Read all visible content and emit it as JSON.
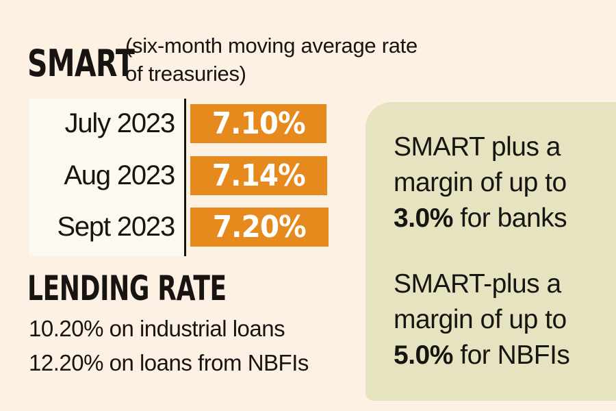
{
  "colors": {
    "background": "#fcf1e2",
    "bar_orange": "#e78a1e",
    "panel_bg": "#e6e3c0",
    "table_bg": "#fdf9f0",
    "ink": "#181411"
  },
  "header": {
    "title": "SMART",
    "subtitle_line1": "(six-month moving average rate",
    "subtitle_line2": "of treasuries)"
  },
  "chart_data": {
    "type": "bar",
    "orientation": "horizontal",
    "title": "SMART (six-month moving average rate of treasuries)",
    "categories": [
      "July 2023",
      "Aug 2023",
      "Sept 2023"
    ],
    "values": [
      7.1,
      7.14,
      7.2
    ],
    "value_labels": [
      "7.10%",
      "7.14%",
      "7.20%"
    ],
    "unit": "%",
    "bar_color": "#e78a1e",
    "legend": "none",
    "grid": false
  },
  "lending": {
    "heading": "LENDING RATE",
    "line1": "10.20% on industrial loans",
    "line2": "12.20% on loans from NBFIs"
  },
  "panel": {
    "block1": {
      "line1": "SMART plus a",
      "line2": "margin of up to",
      "emphasis": "3.0%",
      "rest": " for banks"
    },
    "block2": {
      "line1": "SMART-plus a",
      "line2": "margin of up to",
      "emphasis": "5.0%",
      "rest": " for NBFIs"
    }
  }
}
